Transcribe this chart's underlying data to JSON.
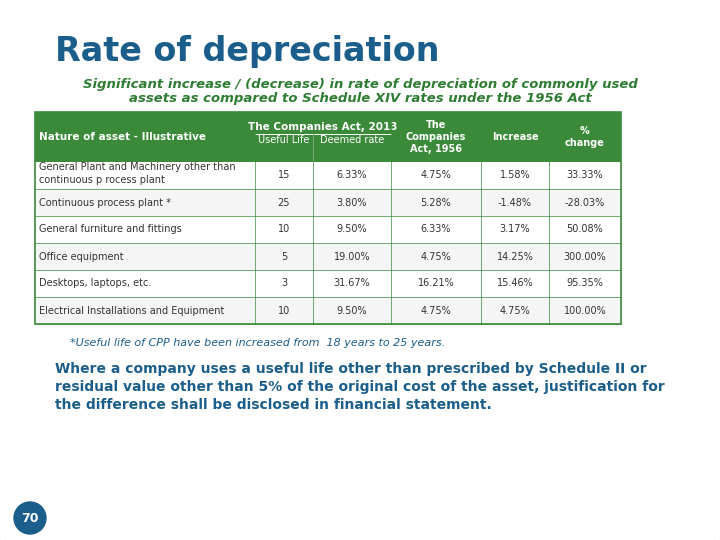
{
  "title": "Rate of depreciation",
  "subtitle_line1": "Significant increase / (decrease) in rate of depreciation of commonly used",
  "subtitle_line2": "assets as compared to Schedule XIV rates under the 1956 Act",
  "table_rows": [
    [
      "General Plant and Machinery other than\ncontinuous p rocess plant",
      "15",
      "6.33%",
      "4.75%",
      "1.58%",
      "33.33%"
    ],
    [
      "Continuous process plant *",
      "25",
      "3.80%",
      "5.28%",
      "-1.48%",
      "-28.03%"
    ],
    [
      "General furniture and fittings",
      "10",
      "9.50%",
      "6.33%",
      "3.17%",
      "50.08%"
    ],
    [
      "Office equipment",
      "5",
      "19.00%",
      "4.75%",
      "14.25%",
      "300.00%"
    ],
    [
      "Desktops, laptops, etc.",
      "3",
      "31.67%",
      "16.21%",
      "15.46%",
      "95.35%"
    ],
    [
      "Electrical Installations and Equipment",
      "10",
      "9.50%",
      "4.75%",
      "4.75%",
      "100.00%"
    ]
  ],
  "footnote": "*Useful life of CPP have been increased from  18 years to 25 years.",
  "bottom_text_line1": "Where a company uses a useful life other than prescribed by Schedule II or",
  "bottom_text_line2": "residual value other than 5% of the original cost of the asset, justification for",
  "bottom_text_line3": "the difference shall be disclosed in financial statement.",
  "page_number": "70",
  "title_color": "#1B5E8B",
  "subtitle_color": "#2E7D32",
  "table_header_bg": "#3A8A3A",
  "table_header_text": "#FFFFFF",
  "table_border_color": "#3A8A3A",
  "table_text_color": "#333333",
  "footnote_color": "#1B5E8B",
  "bottom_text_color": "#1B5E8B",
  "slide_bg": "#FFFFFF",
  "page_circle_bg": "#1B5E8B",
  "page_circle_text": "#FFFFFF",
  "border_color": "#CCCCCC"
}
